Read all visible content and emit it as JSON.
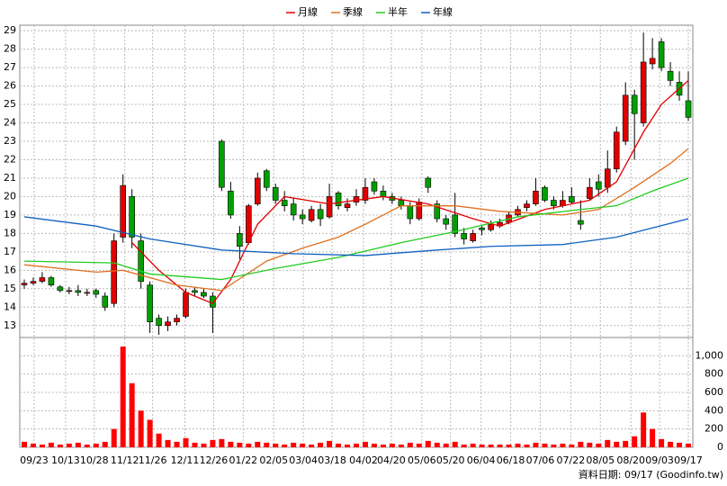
{
  "chart_data": {
    "type": "candlestick",
    "footer": "資料日期: 09/17  (Goodinfo.tw)",
    "xlim": [
      -0.5,
      74.5
    ],
    "xticks": [
      {
        "value": 1.1,
        "label": "09/23"
      },
      {
        "value": 4.6,
        "label": "10/13"
      },
      {
        "value": 7.8,
        "label": "10/28"
      },
      {
        "value": 11.2,
        "label": "11/12"
      },
      {
        "value": 14.3,
        "label": "11/26"
      },
      {
        "value": 17.9,
        "label": "12/11"
      },
      {
        "value": 21.1,
        "label": "12/26"
      },
      {
        "value": 24.4,
        "label": "01/22"
      },
      {
        "value": 27.8,
        "label": "02/05"
      },
      {
        "value": 31.1,
        "label": "03/04"
      },
      {
        "value": 34.3,
        "label": "03/18"
      },
      {
        "value": 37.8,
        "label": "04/02"
      },
      {
        "value": 40.9,
        "label": "04/20"
      },
      {
        "value": 44.3,
        "label": "05/06"
      },
      {
        "value": 47.5,
        "label": "05/20"
      },
      {
        "value": 50.9,
        "label": "06/04"
      },
      {
        "value": 54.2,
        "label": "06/18"
      },
      {
        "value": 57.5,
        "label": "07/06"
      },
      {
        "value": 60.9,
        "label": "07/22"
      },
      {
        "value": 64.2,
        "label": "08/05"
      },
      {
        "value": 67.6,
        "label": "08/20"
      },
      {
        "value": 70.8,
        "label": "09/03"
      },
      {
        "value": 74.0,
        "label": "09/17"
      }
    ],
    "ylim": [
      12.5,
      29.3
    ],
    "yticks": [
      13,
      14,
      15,
      16,
      17,
      18,
      19,
      20,
      21,
      22,
      23,
      24,
      25,
      26,
      27,
      28,
      29
    ],
    "y2lim": [
      0,
      1170
    ],
    "y2ticks": [
      0,
      200,
      400,
      600,
      800,
      {
        "value": 1000,
        "label": "1,000"
      }
    ],
    "up_color": "#e00000",
    "down_color": "#00a000",
    "volume_color": "#ff0000",
    "candles": [
      [
        15.2,
        15.5,
        15.0,
        15.3
      ],
      [
        15.3,
        15.6,
        15.2,
        15.4
      ],
      [
        15.4,
        15.9,
        15.3,
        15.6
      ],
      [
        15.6,
        15.7,
        15.1,
        15.2
      ],
      [
        15.1,
        15.2,
        14.8,
        14.9
      ],
      [
        14.9,
        15.1,
        14.7,
        14.9
      ],
      [
        14.9,
        15.2,
        14.6,
        14.8
      ],
      [
        14.8,
        15.0,
        14.6,
        14.8
      ],
      [
        14.9,
        15.0,
        14.5,
        14.7
      ],
      [
        14.6,
        14.8,
        13.8,
        14.0
      ],
      [
        14.2,
        18.0,
        14.0,
        17.6
      ],
      [
        17.8,
        21.2,
        17.5,
        20.6
      ],
      [
        20.0,
        20.4,
        17.2,
        17.8
      ],
      [
        17.6,
        18.0,
        15.0,
        15.4
      ],
      [
        15.2,
        15.4,
        12.6,
        13.2
      ],
      [
        13.4,
        13.6,
        12.5,
        13.0
      ],
      [
        13.0,
        13.5,
        12.7,
        13.2
      ],
      [
        13.2,
        13.6,
        13.0,
        13.4
      ],
      [
        13.5,
        15.0,
        13.4,
        14.8
      ],
      [
        14.9,
        15.1,
        14.6,
        14.8
      ],
      [
        14.8,
        15.0,
        14.5,
        14.6
      ],
      [
        14.6,
        14.8,
        12.6,
        14.0
      ],
      [
        23.0,
        23.1,
        20.3,
        20.5
      ],
      [
        20.3,
        20.8,
        18.8,
        19.0
      ],
      [
        18.0,
        18.4,
        16.6,
        17.3
      ],
      [
        17.5,
        19.6,
        17.4,
        19.5
      ],
      [
        19.6,
        21.3,
        19.5,
        21.0
      ],
      [
        21.4,
        21.5,
        20.3,
        20.5
      ],
      [
        20.5,
        20.7,
        19.6,
        19.8
      ],
      [
        19.8,
        20.3,
        19.2,
        19.5
      ],
      [
        19.6,
        19.9,
        18.7,
        19.0
      ],
      [
        19.0,
        19.3,
        18.5,
        18.8
      ],
      [
        18.7,
        19.5,
        18.6,
        19.3
      ],
      [
        19.3,
        19.6,
        18.4,
        18.8
      ],
      [
        18.9,
        20.7,
        18.8,
        20.0
      ],
      [
        20.2,
        20.3,
        19.3,
        19.5
      ],
      [
        19.4,
        19.9,
        19.2,
        19.6
      ],
      [
        19.7,
        20.4,
        19.5,
        20.0
      ],
      [
        19.8,
        21.0,
        19.6,
        20.5
      ],
      [
        20.8,
        21.0,
        20.1,
        20.3
      ],
      [
        20.3,
        20.6,
        19.8,
        20.0
      ],
      [
        20.0,
        20.2,
        19.6,
        19.8
      ],
      [
        19.8,
        20.0,
        19.3,
        19.5
      ],
      [
        19.5,
        19.7,
        18.5,
        18.8
      ],
      [
        18.8,
        19.9,
        18.7,
        19.7
      ],
      [
        21.0,
        21.1,
        20.2,
        20.5
      ],
      [
        19.6,
        19.8,
        18.6,
        18.8
      ],
      [
        18.8,
        19.0,
        18.2,
        18.5
      ],
      [
        19.0,
        20.2,
        17.8,
        18.0
      ],
      [
        18.0,
        18.3,
        17.4,
        17.7
      ],
      [
        17.6,
        18.2,
        17.5,
        18.0
      ],
      [
        18.3,
        18.4,
        17.9,
        18.2
      ],
      [
        18.2,
        18.7,
        18.1,
        18.5
      ],
      [
        18.4,
        18.8,
        18.3,
        18.6
      ],
      [
        18.6,
        19.2,
        18.5,
        19.0
      ],
      [
        19.0,
        19.5,
        18.9,
        19.3
      ],
      [
        19.4,
        19.8,
        19.2,
        19.6
      ],
      [
        19.6,
        21.0,
        19.5,
        20.3
      ],
      [
        20.5,
        20.6,
        19.7,
        19.8
      ],
      [
        19.8,
        20.0,
        19.3,
        19.5
      ],
      [
        19.5,
        20.3,
        19.4,
        19.8
      ],
      [
        20.0,
        20.5,
        19.6,
        19.7
      ],
      [
        18.7,
        19.8,
        18.2,
        18.5
      ],
      [
        19.9,
        21.0,
        19.8,
        20.5
      ],
      [
        20.8,
        21.2,
        20.0,
        20.4
      ],
      [
        20.5,
        22.5,
        20.2,
        21.5
      ],
      [
        21.5,
        23.8,
        21.3,
        23.5
      ],
      [
        23.0,
        26.2,
        22.8,
        25.5
      ],
      [
        25.5,
        25.8,
        22.0,
        24.5
      ],
      [
        24.0,
        28.9,
        23.8,
        27.3
      ],
      [
        27.2,
        28.6,
        26.9,
        27.5
      ],
      [
        28.4,
        28.6,
        26.8,
        27.0
      ],
      [
        26.8,
        27.3,
        26.0,
        26.3
      ],
      [
        26.2,
        26.8,
        25.2,
        25.5
      ],
      [
        25.2,
        26.8,
        24.1,
        24.3
      ]
    ],
    "volume": [
      60,
      40,
      30,
      50,
      30,
      40,
      50,
      30,
      40,
      60,
      200,
      1100,
      700,
      400,
      300,
      150,
      80,
      60,
      100,
      50,
      40,
      80,
      90,
      60,
      50,
      40,
      60,
      50,
      40,
      30,
      50,
      40,
      30,
      50,
      70,
      40,
      30,
      40,
      60,
      40,
      30,
      40,
      30,
      50,
      40,
      70,
      50,
      40,
      60,
      30,
      40,
      30,
      30,
      30,
      30,
      40,
      30,
      50,
      40,
      30,
      40,
      30,
      60,
      50,
      40,
      80,
      60,
      70,
      120,
      380,
      200,
      90,
      60,
      50,
      40
    ],
    "series": [
      {
        "name": "月線",
        "color": "#e00000",
        "x": [
          12,
          15,
          18,
          21,
          23,
          26,
          29,
          34,
          40,
          45,
          50,
          53,
          58,
          63,
          66,
          69,
          71,
          74
        ],
        "values": [
          17.5,
          16.0,
          14.8,
          14.2,
          15.5,
          18.5,
          20.0,
          19.6,
          20.0,
          19.6,
          18.8,
          18.4,
          19.3,
          19.8,
          20.8,
          23.5,
          25.0,
          26.3
        ]
      },
      {
        "name": "季線",
        "color": "#e07020",
        "x": [
          0,
          8,
          11,
          17,
          22,
          27,
          31,
          35,
          38,
          42,
          48,
          53,
          60,
          64,
          68,
          72,
          74
        ],
        "values": [
          16.3,
          15.9,
          16.0,
          15.2,
          14.9,
          16.5,
          17.2,
          17.8,
          18.5,
          19.5,
          19.5,
          19.2,
          19.0,
          19.3,
          20.5,
          21.8,
          22.6
        ]
      },
      {
        "name": "半年",
        "color": "#22cc22",
        "x": [
          0,
          10,
          14,
          22,
          28,
          35,
          42,
          48,
          55,
          62,
          66,
          70,
          74
        ],
        "values": [
          16.5,
          16.4,
          15.8,
          15.5,
          16.1,
          16.7,
          17.5,
          18.1,
          18.9,
          19.3,
          19.5,
          20.3,
          21.0
        ]
      },
      {
        "name": "年線",
        "color": "#1060c0",
        "x": [
          0,
          8,
          14,
          22,
          30,
          38,
          46,
          52,
          60,
          66,
          70,
          74
        ],
        "values": [
          18.9,
          18.4,
          17.7,
          17.1,
          16.9,
          16.8,
          17.1,
          17.3,
          17.4,
          17.8,
          18.3,
          18.8
        ]
      }
    ]
  }
}
